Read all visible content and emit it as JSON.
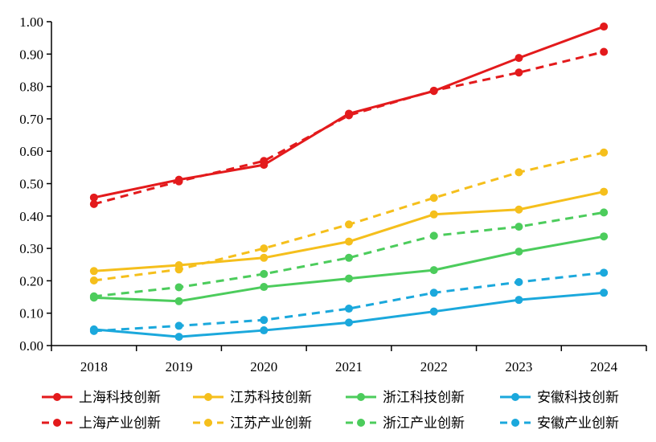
{
  "chart_data": {
    "type": "line",
    "title": "",
    "xlabel": "",
    "ylabel": "",
    "categories": [
      "2018",
      "2019",
      "2020",
      "2021",
      "2022",
      "2023",
      "2024"
    ],
    "y_ticks": [
      "0.00",
      "0.10",
      "0.20",
      "0.30",
      "0.40",
      "0.50",
      "0.60",
      "0.70",
      "0.80",
      "0.90",
      "1.00"
    ],
    "ylim": [
      0,
      1.0
    ],
    "grid": false,
    "legend_position": "bottom",
    "series": [
      {
        "name": "上海科技创新",
        "color": "#e31a1c",
        "dash": false,
        "values": [
          0.457,
          0.512,
          0.558,
          0.716,
          0.786,
          0.888,
          0.985
        ]
      },
      {
        "name": "江苏科技创新",
        "color": "#f5bf1c",
        "dash": false,
        "values": [
          0.23,
          0.248,
          0.271,
          0.321,
          0.405,
          0.42,
          0.475
        ]
      },
      {
        "name": "浙江科技创新",
        "color": "#4ccc5c",
        "dash": false,
        "values": [
          0.148,
          0.137,
          0.181,
          0.207,
          0.233,
          0.29,
          0.337
        ]
      },
      {
        "name": "安徽科技创新",
        "color": "#1ba8dc",
        "dash": false,
        "values": [
          0.05,
          0.027,
          0.047,
          0.071,
          0.105,
          0.141,
          0.163
        ]
      },
      {
        "name": "上海产业创新",
        "color": "#e31a1c",
        "dash": true,
        "values": [
          0.437,
          0.507,
          0.57,
          0.711,
          0.787,
          0.843,
          0.907
        ]
      },
      {
        "name": "江苏产业创新",
        "color": "#f5bf1c",
        "dash": true,
        "values": [
          0.201,
          0.235,
          0.3,
          0.374,
          0.456,
          0.535,
          0.596
        ]
      },
      {
        "name": "浙江产业创新",
        "color": "#4ccc5c",
        "dash": true,
        "values": [
          0.152,
          0.18,
          0.221,
          0.271,
          0.339,
          0.367,
          0.411
        ]
      },
      {
        "name": "安徽产业创新",
        "color": "#1ba8dc",
        "dash": true,
        "values": [
          0.045,
          0.061,
          0.079,
          0.114,
          0.163,
          0.196,
          0.225
        ]
      }
    ]
  }
}
